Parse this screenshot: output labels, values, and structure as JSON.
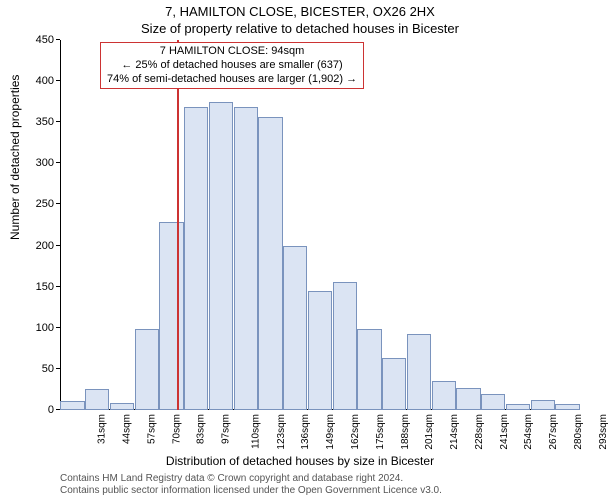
{
  "titles": {
    "line1": "7, HAMILTON CLOSE, BICESTER, OX26 2HX",
    "line2": "Size of property relative to detached houses in Bicester"
  },
  "axes": {
    "ylabel": "Number of detached properties",
    "xlabel": "Distribution of detached houses by size in Bicester"
  },
  "chart": {
    "type": "histogram",
    "ylim": [
      0,
      450
    ],
    "ytick_step": 50,
    "x_start": 31,
    "x_step": 13.3,
    "x_unit": "sqm",
    "bar_fill": "#dbe4f3",
    "bar_border": "#7a93bd",
    "marker_color": "#cc3333",
    "marker_x_value": 94,
    "bars": [
      {
        "x": 31,
        "count": 11
      },
      {
        "x": 44,
        "count": 26
      },
      {
        "x": 57,
        "count": 9
      },
      {
        "x": 70,
        "count": 99
      },
      {
        "x": 83,
        "count": 229
      },
      {
        "x": 97,
        "count": 368
      },
      {
        "x": 110,
        "count": 375
      },
      {
        "x": 123,
        "count": 369
      },
      {
        "x": 136,
        "count": 356
      },
      {
        "x": 149,
        "count": 200
      },
      {
        "x": 162,
        "count": 145
      },
      {
        "x": 175,
        "count": 156
      },
      {
        "x": 188,
        "count": 98
      },
      {
        "x": 201,
        "count": 63
      },
      {
        "x": 214,
        "count": 92
      },
      {
        "x": 228,
        "count": 35
      },
      {
        "x": 241,
        "count": 27
      },
      {
        "x": 254,
        "count": 20
      },
      {
        "x": 267,
        "count": 7
      },
      {
        "x": 280,
        "count": 12
      },
      {
        "x": 293,
        "count": 7
      }
    ]
  },
  "annotation": {
    "line1": "7 HAMILTON CLOSE: 94sqm",
    "line2": "← 25% of detached houses are smaller (637)",
    "line3": "74% of semi-detached houses are larger (1,902) →"
  },
  "footer": {
    "line1": "Contains HM Land Registry data © Crown copyright and database right 2024.",
    "line2": "Contains public sector information licensed under the Open Government Licence v3.0."
  }
}
